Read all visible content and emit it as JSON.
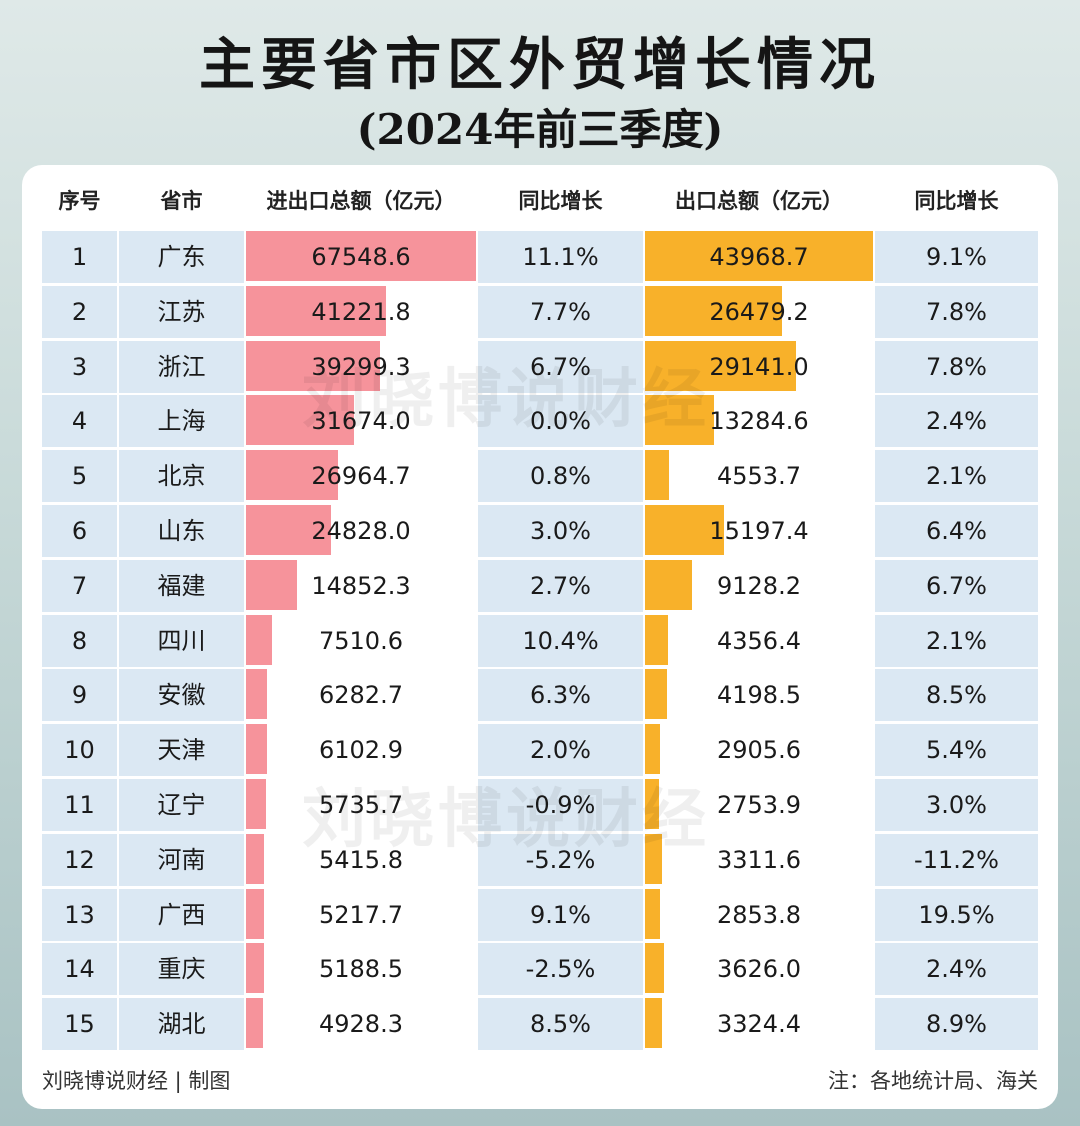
{
  "title": "主要省市区外贸增长情况",
  "subtitle": "(2024年前三季度)",
  "watermark": "刘晓博说财经",
  "footer": {
    "left": "刘晓博说财经 | 制图",
    "right": "注：各地统计局、海关"
  },
  "colors": {
    "import_export_bar": "#f6939b",
    "export_bar": "#f8b12a",
    "row_band": "#dbe8f3"
  },
  "chart_data": {
    "type": "table",
    "columns": [
      "序号",
      "省市",
      "进出口总额（亿元）",
      "同比增长",
      "出口总额（亿元）",
      "同比增长"
    ],
    "rows": [
      {
        "rank": "1",
        "region": "广东",
        "total": "67548.6",
        "total_growth": "11.1%",
        "export": "43968.7",
        "export_growth": "9.1%"
      },
      {
        "rank": "2",
        "region": "江苏",
        "total": "41221.8",
        "total_growth": "7.7%",
        "export": "26479.2",
        "export_growth": "7.8%"
      },
      {
        "rank": "3",
        "region": "浙江",
        "total": "39299.3",
        "total_growth": "6.7%",
        "export": "29141.0",
        "export_growth": "7.8%"
      },
      {
        "rank": "4",
        "region": "上海",
        "total": "31674.0",
        "total_growth": "0.0%",
        "export": "13284.6",
        "export_growth": "2.4%"
      },
      {
        "rank": "5",
        "region": "北京",
        "total": "26964.7",
        "total_growth": "0.8%",
        "export": "4553.7",
        "export_growth": "2.1%"
      },
      {
        "rank": "6",
        "region": "山东",
        "total": "24828.0",
        "total_growth": "3.0%",
        "export": "15197.4",
        "export_growth": "6.4%"
      },
      {
        "rank": "7",
        "region": "福建",
        "total": "14852.3",
        "total_growth": "2.7%",
        "export": "9128.2",
        "export_growth": "6.7%"
      },
      {
        "rank": "8",
        "region": "四川",
        "total": "7510.6",
        "total_growth": "10.4%",
        "export": "4356.4",
        "export_growth": "2.1%"
      },
      {
        "rank": "9",
        "region": "安徽",
        "total": "6282.7",
        "total_growth": "6.3%",
        "export": "4198.5",
        "export_growth": "8.5%"
      },
      {
        "rank": "10",
        "region": "天津",
        "total": "6102.9",
        "total_growth": "2.0%",
        "export": "2905.6",
        "export_growth": "5.4%"
      },
      {
        "rank": "11",
        "region": "辽宁",
        "total": "5735.7",
        "total_growth": "-0.9%",
        "export": "2753.9",
        "export_growth": "3.0%"
      },
      {
        "rank": "12",
        "region": "河南",
        "total": "5415.8",
        "total_growth": "-5.2%",
        "export": "3311.6",
        "export_growth": "-11.2%"
      },
      {
        "rank": "13",
        "region": "广西",
        "total": "5217.7",
        "total_growth": "9.1%",
        "export": "2853.8",
        "export_growth": "19.5%"
      },
      {
        "rank": "14",
        "region": "重庆",
        "total": "5188.5",
        "total_growth": "-2.5%",
        "export": "3626.0",
        "export_growth": "2.4%"
      },
      {
        "rank": "15",
        "region": "湖北",
        "total": "4928.3",
        "total_growth": "8.5%",
        "export": "3324.4",
        "export_growth": "8.9%"
      }
    ]
  }
}
